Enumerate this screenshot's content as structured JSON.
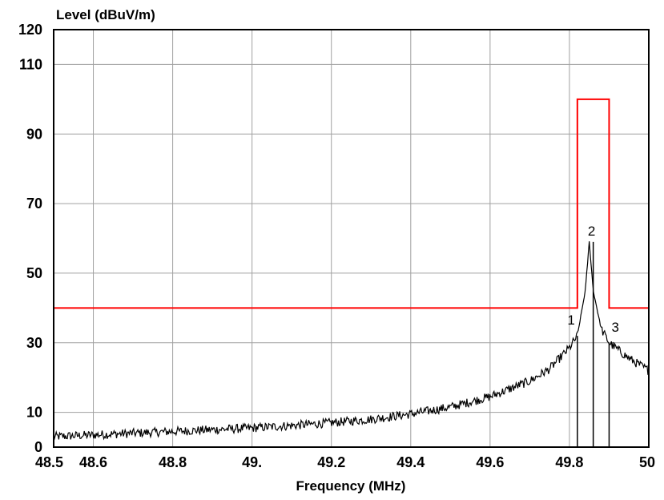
{
  "chart_data": {
    "type": "line",
    "ylabel": "Level (dBuV/m)",
    "xlabel": "Frequency (MHz)",
    "xlim": [
      48.5,
      50.0
    ],
    "ylim": [
      0,
      120
    ],
    "x_ticks": [
      {
        "value": 48.5,
        "label": "48.5"
      },
      {
        "value": 48.6,
        "label": "48.6"
      },
      {
        "value": 48.8,
        "label": "48.8"
      },
      {
        "value": 49.0,
        "label": "49."
      },
      {
        "value": 49.2,
        "label": "49.2"
      },
      {
        "value": 49.4,
        "label": "49.4"
      },
      {
        "value": 49.6,
        "label": "49.6"
      },
      {
        "value": 49.8,
        "label": "49.8"
      },
      {
        "value": 50.0,
        "label": "50"
      }
    ],
    "y_ticks": [
      {
        "value": 0,
        "label": "0"
      },
      {
        "value": 10,
        "label": "10"
      },
      {
        "value": 30,
        "label": "30"
      },
      {
        "value": 50,
        "label": "50"
      },
      {
        "value": 70,
        "label": "70"
      },
      {
        "value": 90,
        "label": "90"
      },
      {
        "value": 110,
        "label": "110"
      },
      {
        "value": 120,
        "label": "120"
      }
    ],
    "grid": true,
    "series": [
      {
        "color": "#ff0000",
        "style": "step",
        "points": [
          [
            48.5,
            40
          ],
          [
            49.82,
            40
          ],
          [
            49.82,
            100
          ],
          [
            49.9,
            100
          ],
          [
            49.9,
            40
          ],
          [
            50.0,
            40
          ]
        ]
      },
      {
        "color": "#000000",
        "style": "noisy",
        "points": [
          [
            48.5,
            3
          ],
          [
            48.6,
            3.5
          ],
          [
            48.7,
            4
          ],
          [
            48.8,
            4.5
          ],
          [
            48.9,
            5
          ],
          [
            49.0,
            5.5
          ],
          [
            49.1,
            6.2
          ],
          [
            49.2,
            7
          ],
          [
            49.3,
            8
          ],
          [
            49.4,
            9.5
          ],
          [
            49.5,
            11.5
          ],
          [
            49.6,
            14.5
          ],
          [
            49.7,
            19
          ],
          [
            49.75,
            22.5
          ],
          [
            49.8,
            28.5
          ],
          [
            49.82,
            32
          ],
          [
            49.84,
            45
          ],
          [
            49.85,
            59
          ],
          [
            49.86,
            45
          ],
          [
            49.88,
            34
          ],
          [
            49.9,
            30
          ],
          [
            49.95,
            25.5
          ],
          [
            50.0,
            22
          ]
        ]
      }
    ],
    "markers": [
      {
        "label": "1",
        "x": 49.82,
        "y": 32
      },
      {
        "label": "2",
        "x": 49.86,
        "y": 59
      },
      {
        "label": "3",
        "x": 49.9,
        "y": 30
      }
    ]
  }
}
